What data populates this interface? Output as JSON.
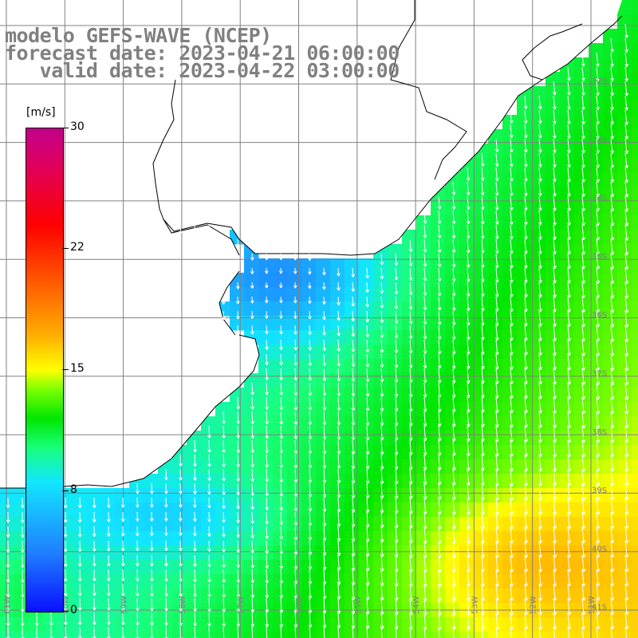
{
  "title": {
    "line1": "modelo GEFS-WAVE (NCEP)",
    "line2": "forecast date: 2023-04-21 06:00:00",
    "line3": "   valid date: 2023-04-22 03:00:00"
  },
  "colorbar": {
    "unit": "[m/s]",
    "ticks": [
      "30",
      "22",
      "15",
      "8",
      "0"
    ],
    "colors": [
      "#0a10ff",
      "#1f7dff",
      "#12e6ff",
      "#18ff7a",
      "#00e600",
      "#ffff00",
      "#ff6a00",
      "#ff0000",
      "#c3008c"
    ]
  },
  "lat_labels": [
    "32S",
    "33S",
    "34S",
    "35S",
    "36S",
    "37S",
    "38S",
    "39S",
    "40S",
    "41S"
  ],
  "lon_labels": [
    "61W",
    "60W",
    "59W",
    "58W",
    "57W",
    "56W",
    "55W",
    "54W",
    "53W",
    "52W",
    "51W"
  ],
  "map": {
    "land_color": "#ffffff",
    "grid_color": "#808080",
    "coast_color": "#000000",
    "arrow_color": "#ffffff"
  }
}
